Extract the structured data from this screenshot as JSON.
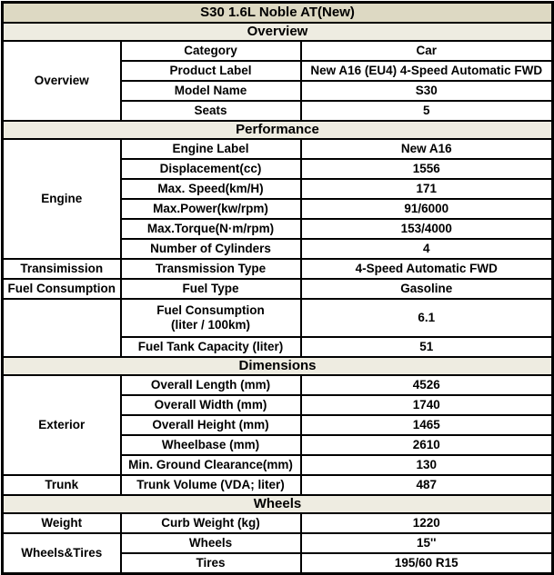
{
  "title": "S30 1.6L Noble AT(New)",
  "colors": {
    "title_bg": "#DDD9C3",
    "section_header_bg": "#EEECE1",
    "grid_border": "#000000",
    "text": "#000000"
  },
  "sections": [
    {
      "name": "Overview",
      "groups": [
        {
          "label": "Overview",
          "rows": [
            {
              "label": "Category",
              "value": "Car"
            },
            {
              "label": "Product Label",
              "value": "New A16 (EU4) 4-Speed Automatic FWD"
            },
            {
              "label": "Model Name",
              "value": "S30"
            },
            {
              "label": "Seats",
              "value": "5"
            }
          ]
        }
      ]
    },
    {
      "name": "Performance",
      "groups": [
        {
          "label": "Engine",
          "rows": [
            {
              "label": "Engine Label",
              "value": "New A16"
            },
            {
              "label": "Displacement(cc)",
              "value": "1556"
            },
            {
              "label": "Max. Speed(km/H)",
              "value": "171"
            },
            {
              "label": "Max.Power(kw/rpm)",
              "value": "91/6000"
            },
            {
              "label": "Max.Torque(N·m/rpm)",
              "value": "153/4000"
            },
            {
              "label": "Number of Cylinders",
              "value": "4"
            }
          ]
        },
        {
          "label": "Transimission",
          "rows": [
            {
              "label": "Transmission Type",
              "value": "4-Speed Automatic FWD"
            }
          ]
        },
        {
          "label": "Fuel Consumption",
          "rows": [
            {
              "label": "Fuel Type",
              "value": "Gasoline"
            }
          ]
        },
        {
          "label": "",
          "rows": [
            {
              "label": "Fuel Consumption\n(liter / 100km)",
              "value": "6.1",
              "tall": true
            },
            {
              "label": "Fuel Tank Capacity (liter)",
              "value": "51"
            }
          ]
        }
      ]
    },
    {
      "name": "Dimensions",
      "groups": [
        {
          "label": "Exterior",
          "rows": [
            {
              "label": "Overall Length (mm)",
              "value": "4526"
            },
            {
              "label": "Overall Width (mm)",
              "value": "1740"
            },
            {
              "label": "Overall Height (mm)",
              "value": "1465"
            },
            {
              "label": "Wheelbase (mm)",
              "value": "2610"
            },
            {
              "label": "Min. Ground Clearance(mm)",
              "value": "130"
            }
          ]
        },
        {
          "label": "Trunk",
          "rows": [
            {
              "label": "Trunk Volume (VDA; liter)",
              "value": "487"
            }
          ]
        }
      ]
    },
    {
      "name": "Wheels",
      "groups": [
        {
          "label": "Weight",
          "rows": [
            {
              "label": "Curb Weight (kg)",
              "value": "1220"
            }
          ]
        },
        {
          "label": "Wheels&Tires",
          "rows": [
            {
              "label": "Wheels",
              "value": "15''"
            },
            {
              "label": "Tires",
              "value": "195/60 R15"
            }
          ]
        }
      ]
    }
  ]
}
